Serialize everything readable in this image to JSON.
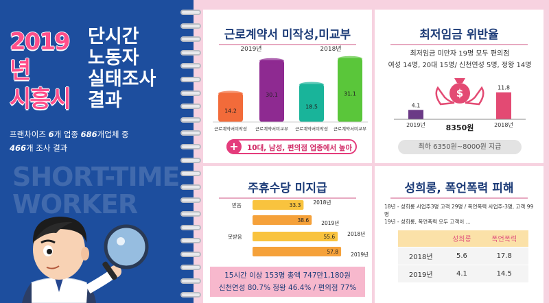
{
  "header": {
    "year": "2019년",
    "city": "시흥시",
    "title_lines": [
      "단시간",
      "노동자",
      "실태조사",
      "결과"
    ],
    "subtitle_line1_a": "프랜차이즈 ",
    "subtitle_line1_b": "6",
    "subtitle_line1_c": "개 업종 ",
    "subtitle_line1_d": "686",
    "subtitle_line1_e": "개업체 중",
    "subtitle_line2_a": "466",
    "subtitle_line2_b": "개 조사 결과",
    "watermark_line1": "SHORT-TIME",
    "watermark_line2": "WORKER"
  },
  "panels": {
    "contract": {
      "title": "근로계약서 미작성,미교부",
      "callout": "10대, 남성, 편의점 업종에서 높아"
    },
    "min_wage": {
      "title": "최저임금 위반율",
      "info_line1": "최저임금 미만자 19명 모두 편의점",
      "info_line2": "여성 14명, 20대 15명/ 신천연성 5명, 정왕 14명",
      "center_label": "8350원",
      "pill": "최하 6350원~8000원 지급"
    },
    "overtime": {
      "title": "주휴수당 미지급",
      "box_line1": "15시간 이상 153명 총액  747만1,180원",
      "box_line2": "신천연성 80.7% 정왕 46.4% / 편의점 77%"
    },
    "harassment": {
      "title": "성희롱, 폭언폭력 피해",
      "text_line1": "18년 - 성희롱 사업주3명 고객 29명 / 폭언폭력 사업주-3명, 고객 99명",
      "text_line2": "19년 - 성희롱, 폭언폭력 모두 고객이 ..."
    }
  },
  "chart_data": [
    {
      "type": "bar",
      "title": "근로계약서 미작성,미교부",
      "groups": [
        "2019년",
        "2018년"
      ],
      "categories": [
        "근로계약서미작성",
        "근로계약서미교부",
        "근로계약서미작성",
        "근로계약서미교부"
      ],
      "values": [
        14.2,
        30.1,
        18.5,
        31.1
      ],
      "group_of_bar": [
        "2019년",
        "2019년",
        "2018년",
        "2018년"
      ],
      "colors": [
        "#f26b3a",
        "#8e2a91",
        "#19b49a",
        "#5ac63a"
      ]
    },
    {
      "type": "bar",
      "title": "최저임금 위반율",
      "categories": [
        "2019년",
        "2018년"
      ],
      "values": [
        4.1,
        11.8
      ],
      "colors": [
        "#6b3a86",
        "#e34a73"
      ]
    },
    {
      "type": "bar",
      "orientation": "horizontal",
      "title": "주휴수당 미지급",
      "groups": [
        "받음",
        "못받음"
      ],
      "bars": [
        {
          "group": "받음",
          "year": "2018년",
          "value": 33.3
        },
        {
          "group": "받음",
          "year": "2019년",
          "value": 38.6
        },
        {
          "group": "못받음",
          "year": "2018년",
          "value": 55.6
        },
        {
          "group": "못받음",
          "year": "2019년",
          "value": 57.8
        }
      ],
      "colors": [
        "#f9c33e",
        "#f5a13a"
      ]
    },
    {
      "type": "table",
      "title": "성희롱, 폭언폭력 피해",
      "columns": [
        "",
        "성희롱",
        "폭언폭력"
      ],
      "rows": [
        [
          "2018년",
          "5.6",
          "17.8"
        ],
        [
          "2019년",
          "4.1",
          "14.5"
        ]
      ]
    }
  ]
}
